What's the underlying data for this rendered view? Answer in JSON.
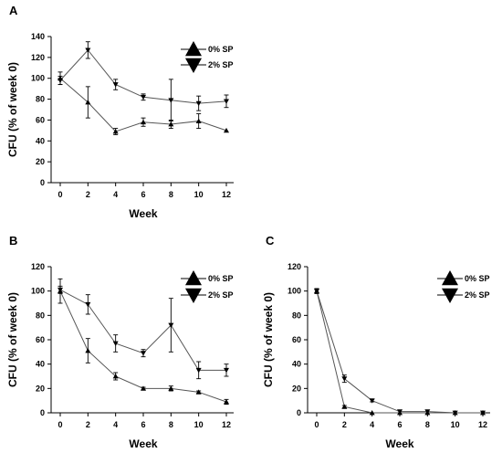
{
  "chart_data": [
    {
      "type": "line",
      "panel_label": "A",
      "xlabel": "Week",
      "ylabel": "CFU (% of week 0)",
      "xlim": [
        0,
        12
      ],
      "ylim": [
        0,
        140
      ],
      "x_ticks": [
        "0",
        "2",
        "4",
        "6",
        "8",
        "10",
        "12"
      ],
      "y_ticks": [
        "0",
        "20",
        "40",
        "60",
        "80",
        "100",
        "120",
        "140"
      ],
      "grid": false,
      "legend_position": "top-right",
      "x": [
        0,
        2,
        4,
        6,
        8,
        10,
        12
      ],
      "series": [
        {
          "name": "0% SP",
          "marker": "triangle-up",
          "values": [
            100,
            77,
            49,
            58,
            56,
            59,
            50
          ],
          "error": [
            6,
            15,
            3,
            4,
            4,
            7,
            0
          ]
        },
        {
          "name": "2% SP",
          "marker": "triangle-down",
          "values": [
            98,
            127,
            94,
            82,
            79,
            76,
            78
          ],
          "error": [
            4,
            8,
            5,
            3,
            20,
            7,
            6
          ]
        }
      ]
    },
    {
      "type": "line",
      "panel_label": "B",
      "xlabel": "Week",
      "ylabel": "CFU (% of week 0)",
      "xlim": [
        0,
        12
      ],
      "ylim": [
        0,
        120
      ],
      "x_ticks": [
        "0",
        "2",
        "4",
        "6",
        "8",
        "10",
        "12"
      ],
      "y_ticks": [
        "0",
        "20",
        "40",
        "60",
        "80",
        "100",
        "120"
      ],
      "grid": false,
      "legend_position": "top-right",
      "x": [
        0,
        2,
        4,
        6,
        8,
        10,
        12
      ],
      "series": [
        {
          "name": "0% SP",
          "marker": "triangle-up",
          "values": [
            100,
            51,
            30,
            20,
            20,
            17,
            9
          ],
          "error": [
            10,
            10,
            3,
            1,
            2,
            1,
            2
          ]
        },
        {
          "name": "2% SP",
          "marker": "triangle-down",
          "values": [
            101,
            89,
            57,
            49,
            72,
            35,
            35
          ],
          "error": [
            3,
            8,
            7,
            3,
            22,
            7,
            5
          ]
        }
      ]
    },
    {
      "type": "line",
      "panel_label": "C",
      "xlabel": "Week",
      "ylabel": "CFU (% of week 0)",
      "xlim": [
        0,
        12
      ],
      "ylim": [
        0,
        120
      ],
      "x_ticks": [
        "0",
        "2",
        "4",
        "6",
        "8",
        "10",
        "12"
      ],
      "y_ticks": [
        "0",
        "20",
        "40",
        "60",
        "80",
        "100",
        "120"
      ],
      "grid": false,
      "legend_position": "top-right",
      "x": [
        0,
        2,
        4,
        6,
        8,
        10,
        12
      ],
      "series": [
        {
          "name": "0% SP",
          "marker": "triangle-up",
          "values": [
            100,
            5,
            0,
            0,
            0,
            0,
            0
          ],
          "error": [
            2,
            1,
            0,
            0,
            0,
            0,
            0
          ]
        },
        {
          "name": "2% SP",
          "marker": "triangle-down",
          "values": [
            100,
            28,
            10,
            1,
            1,
            0,
            0
          ],
          "error": [
            2,
            3,
            1,
            0,
            0,
            0,
            0
          ]
        }
      ]
    }
  ]
}
